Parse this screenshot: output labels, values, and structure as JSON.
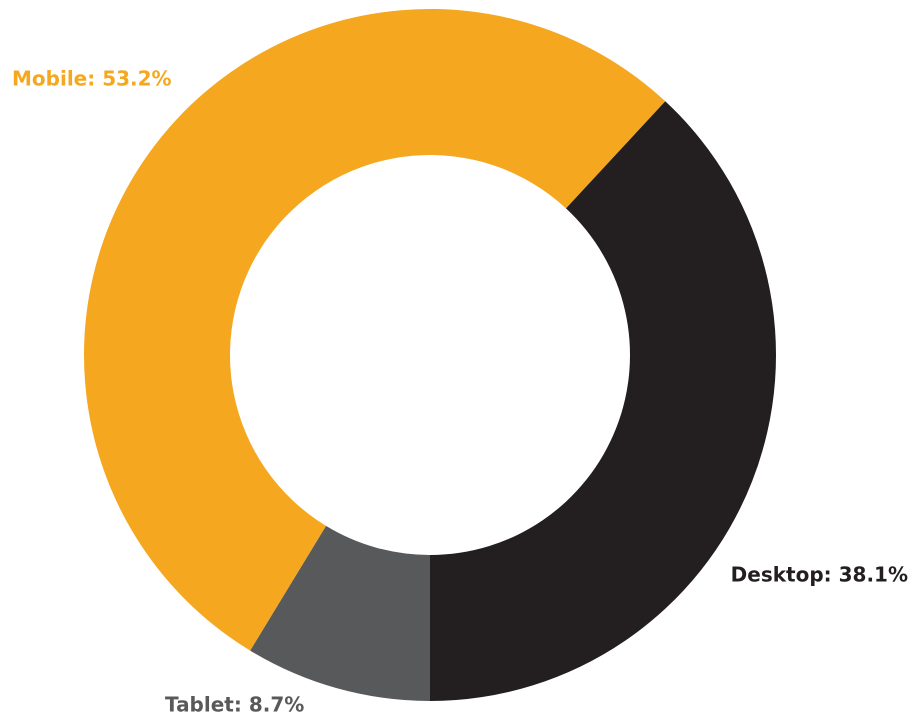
{
  "chart_data": {
    "type": "donut",
    "values": [
      8.7,
      53.2,
      38.1
    ],
    "value_labels": [
      "Tablet: 8.7%",
      "Mobile: 53.2%",
      "Desktop: 38.1%"
    ],
    "colors": [
      "#58595b",
      "#f5a81f",
      "#231f20"
    ]
  }
}
